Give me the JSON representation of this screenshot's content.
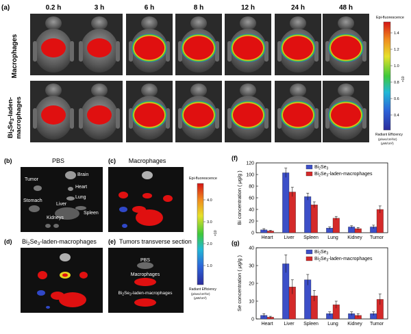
{
  "panel_a": {
    "label": "(a)",
    "timepoints": [
      "0.2 h",
      "3 h",
      "6 h",
      "8 h",
      "12 h",
      "24 h",
      "48 h"
    ],
    "row1_label": "Macrophages",
    "row2_label_line1": "Bi",
    "row2_sub1": "2",
    "row2_mid": "Se",
    "row2_sub2": "3",
    "row2_tail": "-laden-",
    "row2_label_line2": "macrophages",
    "colorbar_title": "Epi-fluorescence",
    "colorbar_ticks": [
      "1.4",
      "1.2",
      "1.0",
      "0.8",
      "0.6",
      "0.4"
    ],
    "colorbar_exp": "×10",
    "colorbar_footer1": "Radiant Efficiency",
    "colorbar_footer2": "(p/sec/cm²/sr)",
    "colorbar_footer3": "(μW/cm²)"
  },
  "panel_b": {
    "label": "(b)",
    "title": "PBS",
    "organs": [
      "Tumor",
      "Brain",
      "Heart",
      "Lung",
      "Stomach",
      "Liver",
      "Spleen",
      "Kidneys"
    ]
  },
  "panel_c": {
    "label": "(c)",
    "title": "Macrophages"
  },
  "panel_d": {
    "label": "(d)",
    "title_a": "Bi",
    "sub1": "2",
    "title_b": "Se",
    "sub2": "3",
    "title_c": "-laden-macrophages"
  },
  "panel_e": {
    "label": "(e)",
    "title": "Tumors transverse section",
    "rows": [
      "PBS",
      "Macrophages"
    ],
    "row3_a": "Bi",
    "row3_sub1": "2",
    "row3_b": "Se",
    "row3_sub2": "3",
    "row3_c": "-laden-macrophages"
  },
  "colorbar2": {
    "title": "Epi-fluorescence",
    "ticks": [
      "4.0",
      "3.0",
      "2.0",
      "1.0"
    ],
    "exp": "×10",
    "footer1": "Radiant Efficiency",
    "footer2": "(p/sec/cm²/sr)",
    "footer3": "(μW/cm²)"
  },
  "colors": {
    "series1": "#3c4fc8",
    "series2": "#d42a2a",
    "signal": "#e01010"
  },
  "chart_data": [
    {
      "panel": "(f)",
      "type": "bar",
      "categories": [
        "Heart",
        "Liver",
        "Spleen",
        "Lung",
        "Kidney",
        "Tumor"
      ],
      "ylabel_a": "Bi concentration ( ",
      "ylabel_mu": "μ",
      "ylabel_b": "g/g )",
      "ylim": [
        0,
        120
      ],
      "yticks": [
        0,
        20,
        40,
        60,
        80,
        100,
        120
      ],
      "legend_placement": "top-right",
      "series": [
        {
          "legend_a": "Bi",
          "legend_sub1": "2",
          "legend_b": "Se",
          "legend_sub2": "3",
          "legend_c": "",
          "values": [
            5,
            103,
            62,
            8,
            10,
            10
          ],
          "errors": [
            2,
            8,
            6,
            2,
            2,
            3
          ]
        },
        {
          "legend_a": "Bi",
          "legend_sub1": "2",
          "legend_b": "Se",
          "legend_sub2": "3",
          "legend_c": "-laden-macrophages",
          "values": [
            3,
            70,
            48,
            25,
            7,
            40
          ],
          "errors": [
            1,
            8,
            5,
            3,
            2,
            6
          ]
        }
      ]
    },
    {
      "panel": "(g)",
      "type": "bar",
      "categories": [
        "Heart",
        "Liver",
        "Spleen",
        "Lung",
        "Kidney",
        "Tumor"
      ],
      "ylabel_a": "Se concentration ( ",
      "ylabel_mu": "μ",
      "ylabel_b": "g/g )",
      "ylim": [
        0,
        40
      ],
      "yticks": [
        0,
        10,
        20,
        30,
        40
      ],
      "legend_placement": "top-right",
      "series": [
        {
          "legend_a": "Bi",
          "legend_sub1": "2",
          "legend_b": "Se",
          "legend_sub2": "3",
          "legend_c": "",
          "values": [
            2,
            31,
            22,
            3,
            3,
            3
          ],
          "errors": [
            1,
            5,
            3,
            1,
            1,
            1
          ]
        },
        {
          "legend_a": "Bi",
          "legend_sub1": "2",
          "legend_b": "Se",
          "legend_sub2": "3",
          "legend_c": "-laden-macrophages",
          "values": [
            1,
            18,
            13,
            8,
            2,
            11
          ],
          "errors": [
            0.5,
            4,
            3,
            2,
            1,
            3
          ]
        }
      ]
    }
  ]
}
